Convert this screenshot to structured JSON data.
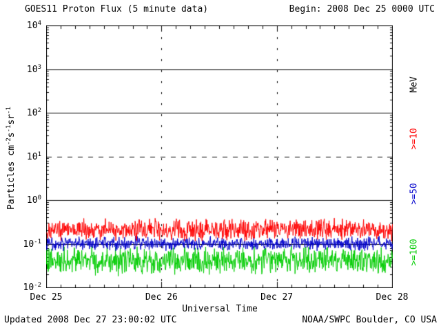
{
  "header": {
    "title": "GOES11 Proton Flux (5 minute data)",
    "begin_label": "Begin: 2008 Dec 25 0000 UTC"
  },
  "footer": {
    "updated": "Updated 2008 Dec 27 23:00:02 UTC",
    "source": "NOAA/SWPC Boulder, CO USA"
  },
  "colors": {
    "background": "#ffffff",
    "axis": "#000000",
    "text": "#000000",
    "series_ge10": "#ff0000",
    "series_ge50": "#0000cc",
    "series_ge100": "#00cc00"
  },
  "chart_data": {
    "type": "line",
    "title": "GOES11 Proton Flux (5 minute data)",
    "xlabel": "Universal Time",
    "ylabel": "Particles cm^-2 s^-1 sr^-1",
    "ylabel_segments": [
      {
        "t": "Particles cm"
      },
      {
        "s": "-2"
      },
      {
        "t": "s"
      },
      {
        "s": "-1"
      },
      {
        "t": "sr"
      },
      {
        "s": "-1"
      }
    ],
    "y_scale": "log",
    "ylim": [
      0.01,
      10000
    ],
    "y_ticks": [
      {
        "base": "10",
        "exp": "4"
      },
      {
        "base": "10",
        "exp": "3"
      },
      {
        "base": "10",
        "exp": "2"
      },
      {
        "base": "10",
        "exp": "1"
      },
      {
        "base": "10",
        "exp": "0"
      },
      {
        "base": "10",
        "exp": "-1"
      },
      {
        "base": "10",
        "exp": "-2"
      }
    ],
    "x_ticks": [
      "Dec 25",
      "Dec 26",
      "Dec 27",
      "Dec 28"
    ],
    "x_range": "2008 Dec 25 0000 UTC to 2008 Dec 28 0000 UTC",
    "cadence": "5 minute",
    "points_per_day": 288,
    "days": 3,
    "gridlines": {
      "h_solid": [
        1000,
        100,
        1,
        0.1
      ],
      "h_dashed": [
        10
      ],
      "v_dashed_at_day_boundaries": true
    },
    "right_axis_unit": "MeV",
    "legend_position": "right",
    "series": [
      {
        "name": ">=10",
        "color": "#ff0000",
        "baseline_flux": 0.19,
        "flux_min": 0.11,
        "flux_max": 0.4
      },
      {
        "name": ">=50",
        "color": "#0000cc",
        "baseline_flux": 0.1,
        "flux_min": 0.068,
        "flux_max": 0.155
      },
      {
        "name": ">=100",
        "color": "#00cc00",
        "baseline_flux": 0.042,
        "flux_min": 0.018,
        "flux_max": 0.095
      }
    ]
  }
}
